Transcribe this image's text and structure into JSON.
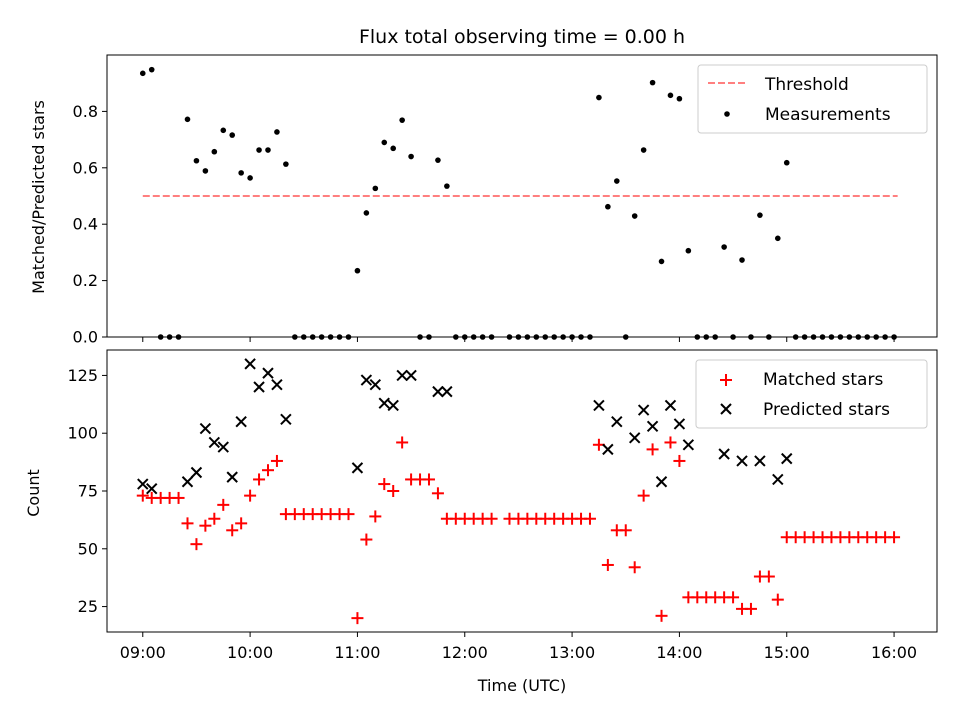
{
  "chart_data": [
    {
      "type": "scatter",
      "title": "Flux total observing time = 0.00 h",
      "ylabel": "Matched/Predicted stars",
      "xlim": [
        "08:40",
        "16:24"
      ],
      "ylim": [
        0,
        1.0
      ],
      "yticks": [
        "0.0",
        "0.2",
        "0.4",
        "0.6",
        "0.8"
      ],
      "grid": false,
      "legend_position": "top-right",
      "threshold": {
        "name": "Threshold",
        "value": 0.5,
        "x_range": [
          "09:00",
          "16:02"
        ],
        "color": "#ff7f7f",
        "style": "dashed"
      },
      "series": [
        {
          "name": "Measurements",
          "color": "#000000",
          "marker": "dot",
          "points": [
            [
              "09:00",
              0.935
            ],
            [
              "09:05",
              0.948
            ],
            [
              "09:10",
              0.0
            ],
            [
              "09:15",
              0.0
            ],
            [
              "09:20",
              0.0
            ],
            [
              "09:25",
              0.772
            ],
            [
              "09:30",
              0.625
            ],
            [
              "09:35",
              0.589
            ],
            [
              "09:40",
              0.657
            ],
            [
              "09:45",
              0.733
            ],
            [
              "09:50",
              0.716
            ],
            [
              "09:55",
              0.582
            ],
            [
              "10:00",
              0.564
            ],
            [
              "10:05",
              0.663
            ],
            [
              "10:10",
              0.663
            ],
            [
              "10:15",
              0.727
            ],
            [
              "10:20",
              0.613
            ],
            [
              "10:25",
              0.0
            ],
            [
              "10:30",
              0.0
            ],
            [
              "10:35",
              0.0
            ],
            [
              "10:40",
              0.0
            ],
            [
              "10:45",
              0.0
            ],
            [
              "10:50",
              0.0
            ],
            [
              "10:55",
              0.0
            ],
            [
              "11:00",
              0.235
            ],
            [
              "11:05",
              0.44
            ],
            [
              "11:10",
              0.527
            ],
            [
              "11:15",
              0.69
            ],
            [
              "11:20",
              0.669
            ],
            [
              "11:25",
              0.769
            ],
            [
              "11:30",
              0.64
            ],
            [
              "11:35",
              0.0
            ],
            [
              "11:40",
              0.0
            ],
            [
              "11:45",
              0.627
            ],
            [
              "11:50",
              0.535
            ],
            [
              "11:55",
              0.0
            ],
            [
              "12:00",
              0.0
            ],
            [
              "12:05",
              0.0
            ],
            [
              "12:10",
              0.0
            ],
            [
              "12:15",
              0.0
            ],
            [
              "12:25",
              0.0
            ],
            [
              "12:30",
              0.0
            ],
            [
              "12:35",
              0.0
            ],
            [
              "12:40",
              0.0
            ],
            [
              "12:45",
              0.0
            ],
            [
              "12:50",
              0.0
            ],
            [
              "12:55",
              0.0
            ],
            [
              "13:00",
              0.0
            ],
            [
              "13:05",
              0.0
            ],
            [
              "13:10",
              0.0
            ],
            [
              "13:15",
              0.849
            ],
            [
              "13:20",
              0.462
            ],
            [
              "13:25",
              0.553
            ],
            [
              "13:30",
              0.0
            ],
            [
              "13:35",
              0.429
            ],
            [
              "13:40",
              0.663
            ],
            [
              "13:45",
              0.902
            ],
            [
              "13:50",
              0.268
            ],
            [
              "13:55",
              0.857
            ],
            [
              "14:00",
              0.845
            ],
            [
              "14:05",
              0.306
            ],
            [
              "14:10",
              0.0
            ],
            [
              "14:15",
              0.0
            ],
            [
              "14:20",
              0.0
            ],
            [
              "14:25",
              0.319
            ],
            [
              "14:30",
              0.0
            ],
            [
              "14:35",
              0.273
            ],
            [
              "14:40",
              0.0
            ],
            [
              "14:45",
              0.432
            ],
            [
              "14:50",
              0.0
            ],
            [
              "14:55",
              0.35
            ],
            [
              "15:00",
              0.618
            ],
            [
              "15:05",
              0.0
            ],
            [
              "15:10",
              0.0
            ],
            [
              "15:15",
              0.0
            ],
            [
              "15:20",
              0.0
            ],
            [
              "15:25",
              0.0
            ],
            [
              "15:30",
              0.0
            ],
            [
              "15:35",
              0.0
            ],
            [
              "15:40",
              0.0
            ],
            [
              "15:45",
              0.0
            ],
            [
              "15:50",
              0.0
            ],
            [
              "15:55",
              0.0
            ],
            [
              "16:00",
              0.0
            ]
          ]
        }
      ]
    },
    {
      "type": "scatter",
      "xlabel": "Time (UTC)",
      "ylabel": "Count",
      "xlim": [
        "08:40",
        "16:24"
      ],
      "ylim": [
        14,
        136
      ],
      "xticks": [
        "09:00",
        "10:00",
        "11:00",
        "12:00",
        "13:00",
        "14:00",
        "15:00",
        "16:00"
      ],
      "yticks": [
        "25",
        "50",
        "75",
        "100",
        "125"
      ],
      "grid": false,
      "legend_position": "top-right",
      "series": [
        {
          "name": "Matched stars",
          "color": "#ff0000",
          "marker": "plus",
          "points": [
            [
              "09:00",
              73
            ],
            [
              "09:05",
              72
            ],
            [
              "09:10",
              72
            ],
            [
              "09:15",
              72
            ],
            [
              "09:20",
              72
            ],
            [
              "09:25",
              61
            ],
            [
              "09:30",
              52
            ],
            [
              "09:35",
              60
            ],
            [
              "09:40",
              63
            ],
            [
              "09:45",
              69
            ],
            [
              "09:50",
              58
            ],
            [
              "09:55",
              61
            ],
            [
              "10:00",
              73
            ],
            [
              "10:05",
              80
            ],
            [
              "10:10",
              84
            ],
            [
              "10:15",
              88
            ],
            [
              "10:20",
              65
            ],
            [
              "10:25",
              65
            ],
            [
              "10:30",
              65
            ],
            [
              "10:35",
              65
            ],
            [
              "10:40",
              65
            ],
            [
              "10:45",
              65
            ],
            [
              "10:50",
              65
            ],
            [
              "10:55",
              65
            ],
            [
              "11:00",
              20
            ],
            [
              "11:05",
              54
            ],
            [
              "11:10",
              64
            ],
            [
              "11:15",
              78
            ],
            [
              "11:20",
              75
            ],
            [
              "11:25",
              96
            ],
            [
              "11:30",
              80
            ],
            [
              "11:35",
              80
            ],
            [
              "11:40",
              80
            ],
            [
              "11:45",
              74
            ],
            [
              "11:50",
              63
            ],
            [
              "11:55",
              63
            ],
            [
              "12:00",
              63
            ],
            [
              "12:05",
              63
            ],
            [
              "12:10",
              63
            ],
            [
              "12:15",
              63
            ],
            [
              "12:25",
              63
            ],
            [
              "12:30",
              63
            ],
            [
              "12:35",
              63
            ],
            [
              "12:40",
              63
            ],
            [
              "12:45",
              63
            ],
            [
              "12:50",
              63
            ],
            [
              "12:55",
              63
            ],
            [
              "13:00",
              63
            ],
            [
              "13:05",
              63
            ],
            [
              "13:10",
              63
            ],
            [
              "13:15",
              95
            ],
            [
              "13:20",
              43
            ],
            [
              "13:25",
              58
            ],
            [
              "13:30",
              58
            ],
            [
              "13:35",
              42
            ],
            [
              "13:40",
              73
            ],
            [
              "13:45",
              93
            ],
            [
              "13:50",
              21
            ],
            [
              "13:55",
              96
            ],
            [
              "14:00",
              88
            ],
            [
              "14:05",
              29
            ],
            [
              "14:10",
              29
            ],
            [
              "14:15",
              29
            ],
            [
              "14:20",
              29
            ],
            [
              "14:25",
              29
            ],
            [
              "14:30",
              29
            ],
            [
              "14:35",
              24
            ],
            [
              "14:40",
              24
            ],
            [
              "14:45",
              38
            ],
            [
              "14:50",
              38
            ],
            [
              "14:55",
              28
            ],
            [
              "15:00",
              55
            ],
            [
              "15:05",
              55
            ],
            [
              "15:10",
              55
            ],
            [
              "15:15",
              55
            ],
            [
              "15:20",
              55
            ],
            [
              "15:25",
              55
            ],
            [
              "15:30",
              55
            ],
            [
              "15:35",
              55
            ],
            [
              "15:40",
              55
            ],
            [
              "15:45",
              55
            ],
            [
              "15:50",
              55
            ],
            [
              "15:55",
              55
            ],
            [
              "16:00",
              55
            ]
          ]
        },
        {
          "name": "Predicted stars",
          "color": "#000000",
          "marker": "x",
          "points": [
            [
              "09:00",
              78
            ],
            [
              "09:05",
              76
            ],
            [
              "09:25",
              79
            ],
            [
              "09:30",
              83
            ],
            [
              "09:35",
              102
            ],
            [
              "09:40",
              96
            ],
            [
              "09:45",
              94
            ],
            [
              "09:50",
              81
            ],
            [
              "09:55",
              105
            ],
            [
              "10:00",
              130
            ],
            [
              "10:05",
              120
            ],
            [
              "10:10",
              126
            ],
            [
              "10:15",
              121
            ],
            [
              "10:20",
              106
            ],
            [
              "11:00",
              85
            ],
            [
              "11:05",
              123
            ],
            [
              "11:10",
              121
            ],
            [
              "11:15",
              113
            ],
            [
              "11:20",
              112
            ],
            [
              "11:25",
              125
            ],
            [
              "11:30",
              125
            ],
            [
              "11:45",
              118
            ],
            [
              "11:50",
              118
            ],
            [
              "13:15",
              112
            ],
            [
              "13:20",
              93
            ],
            [
              "13:25",
              105
            ],
            [
              "13:35",
              98
            ],
            [
              "13:40",
              110
            ],
            [
              "13:45",
              103
            ],
            [
              "13:50",
              79
            ],
            [
              "13:55",
              112
            ],
            [
              "14:00",
              104
            ],
            [
              "14:05",
              95
            ],
            [
              "14:25",
              91
            ],
            [
              "14:35",
              88
            ],
            [
              "14:45",
              88
            ],
            [
              "14:55",
              80
            ],
            [
              "15:00",
              89
            ]
          ]
        }
      ]
    }
  ]
}
